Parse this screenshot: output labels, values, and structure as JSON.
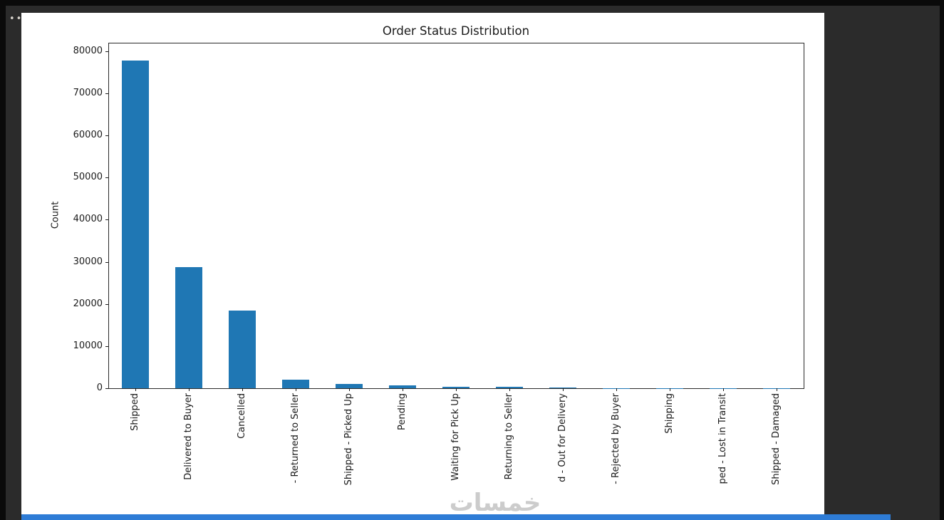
{
  "window": {
    "menu_dots": "•••"
  },
  "watermark": {
    "text": "خمسات",
    "color": "#cccccc"
  },
  "colors": {
    "panel_bg": "#2b2b2b",
    "figure_bg": "#ffffff",
    "bottom_bar": "#2e7cd6",
    "bar": "#1f77b4"
  },
  "chart_data": {
    "type": "bar",
    "title": "Order Status Distribution",
    "xlabel": "",
    "ylabel": "Count",
    "categories": [
      "Shipped",
      "Delivered to Buyer",
      "Cancelled",
      "- Returned to Seller",
      "Shipped - Picked Up",
      "Pending",
      "Waiting for Pick Up",
      "Returning to Seller",
      "d - Out for Delivery",
      "- Rejected by Buyer",
      "Shipping",
      "ped - Lost in Transit",
      "Shipped - Damaged"
    ],
    "values": [
      77800,
      28700,
      18500,
      1950,
      950,
      700,
      320,
      280,
      120,
      80,
      60,
      40,
      30
    ],
    "yticks": [
      0,
      10000,
      20000,
      30000,
      40000,
      50000,
      60000,
      70000,
      80000
    ],
    "ylim": [
      0,
      82000
    ],
    "bar_color": "#1f77b4",
    "grid": false,
    "legend": "none",
    "x_tick_rotation": 90
  }
}
